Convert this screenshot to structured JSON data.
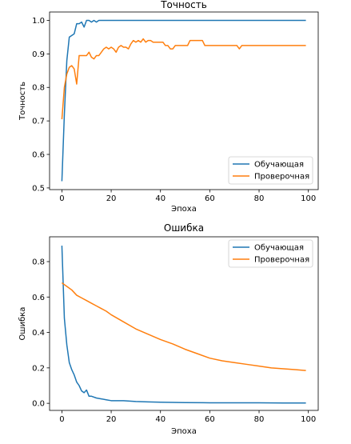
{
  "chart_data": [
    {
      "type": "line",
      "title": "Точность",
      "xlabel": "Эпоха",
      "ylabel": "Точность",
      "xlim": [
        -5,
        104
      ],
      "ylim": [
        0.495,
        1.025
      ],
      "xticks": [
        0,
        20,
        40,
        60,
        80,
        100
      ],
      "xtick_labels": [
        "0",
        "20",
        "40",
        "60",
        "80",
        "100"
      ],
      "yticks": [
        0.5,
        0.6,
        0.7,
        0.8,
        0.9,
        1.0
      ],
      "ytick_labels": [
        "0.5",
        "0.6",
        "0.7",
        "0.8",
        "0.9",
        "1.0"
      ],
      "grid": false,
      "legend_position": "lower right",
      "series": [
        {
          "name": "Обучающая",
          "color": "#1f77b4",
          "x": [
            0,
            1,
            2,
            3,
            4,
            5,
            6,
            7,
            8,
            9,
            10,
            11,
            12,
            13,
            14,
            15,
            16,
            17,
            18,
            19,
            20,
            30,
            40,
            50,
            60,
            70,
            80,
            90,
            99
          ],
          "y": [
            0.52,
            0.72,
            0.88,
            0.95,
            0.955,
            0.96,
            0.99,
            0.99,
            0.995,
            0.98,
            1.0,
            1.0,
            0.995,
            1.0,
            0.995,
            1.0,
            1.0,
            1.0,
            1.0,
            1.0,
            1.0,
            1.0,
            1.0,
            1.0,
            1.0,
            1.0,
            1.0,
            1.0,
            1.0
          ]
        },
        {
          "name": "Проверочная",
          "color": "#ff7f0e",
          "x": [
            0,
            1,
            2,
            3,
            4,
            5,
            6,
            7,
            8,
            9,
            10,
            11,
            12,
            13,
            14,
            15,
            16,
            17,
            18,
            19,
            20,
            21,
            22,
            23,
            24,
            25,
            26,
            27,
            28,
            29,
            30,
            31,
            32,
            33,
            34,
            35,
            36,
            37,
            38,
            39,
            40,
            41,
            42,
            43,
            44,
            45,
            46,
            47,
            48,
            49,
            50,
            51,
            52,
            53,
            54,
            55,
            56,
            57,
            58,
            60,
            65,
            70,
            71,
            72,
            73,
            75,
            80,
            85,
            90,
            95,
            99
          ],
          "y": [
            0.705,
            0.8,
            0.84,
            0.86,
            0.865,
            0.855,
            0.81,
            0.895,
            0.895,
            0.895,
            0.895,
            0.905,
            0.89,
            0.885,
            0.895,
            0.895,
            0.905,
            0.915,
            0.92,
            0.915,
            0.92,
            0.915,
            0.905,
            0.92,
            0.925,
            0.92,
            0.92,
            0.915,
            0.93,
            0.94,
            0.935,
            0.94,
            0.935,
            0.945,
            0.935,
            0.94,
            0.94,
            0.935,
            0.935,
            0.935,
            0.935,
            0.935,
            0.925,
            0.925,
            0.915,
            0.915,
            0.925,
            0.925,
            0.925,
            0.925,
            0.925,
            0.925,
            0.94,
            0.94,
            0.94,
            0.94,
            0.94,
            0.94,
            0.925,
            0.925,
            0.925,
            0.925,
            0.925,
            0.915,
            0.925,
            0.925,
            0.925,
            0.925,
            0.925,
            0.925,
            0.925
          ]
        }
      ]
    },
    {
      "type": "line",
      "title": "Ошибка",
      "xlabel": "Эпоха",
      "ylabel": "Ошибка",
      "xlim": [
        -5,
        104
      ],
      "ylim": [
        -0.04,
        0.94
      ],
      "xticks": [
        0,
        20,
        40,
        60,
        80,
        100
      ],
      "xtick_labels": [
        "0",
        "20",
        "40",
        "60",
        "80",
        "100"
      ],
      "yticks": [
        0.0,
        0.2,
        0.4,
        0.6,
        0.8
      ],
      "ytick_labels": [
        "0.0",
        "0.2",
        "0.4",
        "0.6",
        "0.8"
      ],
      "grid": false,
      "legend_position": "upper right",
      "series": [
        {
          "name": "Обучающая",
          "color": "#1f77b4",
          "x": [
            0,
            1,
            2,
            3,
            4,
            5,
            6,
            7,
            8,
            9,
            10,
            11,
            12,
            14,
            16,
            18,
            20,
            22,
            25,
            30,
            35,
            40,
            50,
            60,
            70,
            80,
            90,
            99
          ],
          "y": [
            0.89,
            0.48,
            0.33,
            0.23,
            0.19,
            0.16,
            0.12,
            0.1,
            0.07,
            0.06,
            0.075,
            0.04,
            0.04,
            0.03,
            0.025,
            0.02,
            0.015,
            0.015,
            0.015,
            0.01,
            0.008,
            0.006,
            0.004,
            0.003,
            0.003,
            0.003,
            0.002,
            0.002
          ]
        },
        {
          "name": "Проверочная",
          "color": "#ff7f0e",
          "x": [
            0,
            2,
            4,
            6,
            8,
            10,
            12,
            14,
            16,
            18,
            20,
            25,
            30,
            35,
            40,
            45,
            50,
            55,
            60,
            65,
            70,
            75,
            80,
            85,
            90,
            95,
            99
          ],
          "y": [
            0.68,
            0.66,
            0.64,
            0.61,
            0.595,
            0.58,
            0.565,
            0.55,
            0.535,
            0.52,
            0.5,
            0.46,
            0.42,
            0.39,
            0.36,
            0.335,
            0.305,
            0.28,
            0.255,
            0.24,
            0.23,
            0.22,
            0.21,
            0.2,
            0.195,
            0.19,
            0.185
          ]
        }
      ]
    }
  ]
}
